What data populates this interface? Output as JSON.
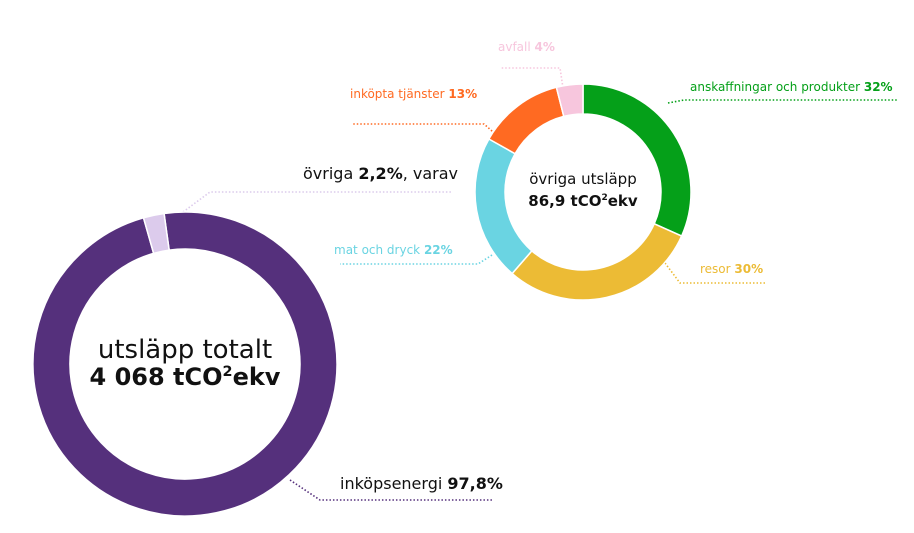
{
  "chart_data": [
    {
      "type": "pie",
      "donut": true,
      "center_title": "utsläpp totalt",
      "center_value": "4 068 tCO²ekv",
      "center_value_number": "4 068",
      "center_value_unit_pre": "tCO",
      "center_value_unit_sup": "2",
      "center_value_unit_post": "ekv",
      "slices": [
        {
          "label": "inköpsenergi",
          "value": 97.8,
          "value_text": "97,8%",
          "color": "#55307c"
        },
        {
          "label": "övriga",
          "value": 2.2,
          "value_text": "2,2%",
          "suffix": ", varav",
          "color": "#dccbec"
        }
      ]
    },
    {
      "type": "pie",
      "donut": true,
      "center_title": "övriga utsläpp",
      "center_value": "86,9 tCO²ekv",
      "center_value_number": "86,9",
      "center_value_unit_pre": "tCO",
      "center_value_unit_sup": "2",
      "center_value_unit_post": "ekv",
      "slices": [
        {
          "label": "anskaffningar och produkter",
          "value": 32,
          "value_text": "32%",
          "color": "#05a019"
        },
        {
          "label": "resor",
          "value": 30,
          "value_text": "30%",
          "color": "#ecbb35"
        },
        {
          "label": "mat och dryck",
          "value": 22,
          "value_text": "22%",
          "color": "#6ad4e2"
        },
        {
          "label": "inköpta tjänster",
          "value": 13,
          "value_text": "13%",
          "color": "#ff6a22"
        },
        {
          "label": "avfall",
          "value": 4,
          "value_text": "4%",
          "color": "#f7c6dd"
        }
      ]
    }
  ]
}
